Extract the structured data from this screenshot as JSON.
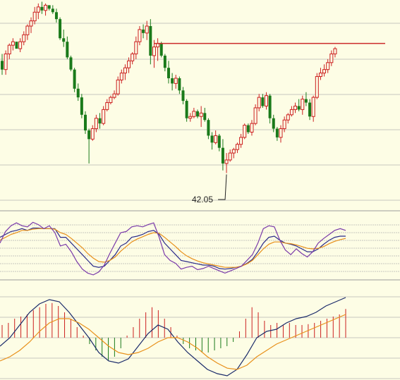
{
  "colors": {
    "background": "#fdfde5",
    "grid": "#c8c8c0",
    "separator": "#9a9a9a",
    "up": "#cc1f1f",
    "down": "#1a7a1a",
    "resistance": "#cc2a2a",
    "kdj_k": "#2a2a8a",
    "kdj_d": "#e8901a",
    "kdj_j": "#7a3aaa",
    "macd_dif": "#1a2a6a",
    "macd_dea": "#e8901a"
  },
  "chart_data": [
    {
      "type": "candlestick",
      "panel": "price",
      "ylim": [
        40,
        52
      ],
      "resistance_level": 49.5,
      "low_annotation": {
        "label": "42.05",
        "value": 42.05
      },
      "ohlc": [
        [
          48.5,
          48.9,
          47.7,
          48.0
        ],
        [
          48.0,
          49.1,
          47.7,
          48.9
        ],
        [
          48.9,
          49.5,
          48.6,
          49.4
        ],
        [
          49.4,
          49.8,
          49.1,
          49.6
        ],
        [
          49.6,
          49.6,
          49.2,
          49.2
        ],
        [
          49.2,
          49.8,
          49.0,
          49.6
        ],
        [
          49.6,
          50.2,
          49.4,
          50.0
        ],
        [
          50.0,
          50.6,
          49.7,
          50.5
        ],
        [
          50.5,
          51.0,
          50.1,
          50.8
        ],
        [
          50.8,
          51.6,
          50.6,
          51.3
        ],
        [
          51.3,
          51.8,
          50.9,
          51.6
        ],
        [
          51.6,
          51.9,
          51.2,
          51.4
        ],
        [
          51.4,
          51.8,
          51.1,
          51.7
        ],
        [
          51.7,
          51.7,
          51.4,
          51.5
        ],
        [
          51.5,
          51.7,
          51.2,
          51.3
        ],
        [
          51.3,
          51.5,
          50.7,
          50.9
        ],
        [
          50.9,
          51.0,
          49.7,
          49.8
        ],
        [
          49.8,
          50.3,
          49.3,
          49.6
        ],
        [
          49.6,
          49.9,
          48.6,
          48.7
        ],
        [
          48.7,
          48.8,
          47.9,
          48.0
        ],
        [
          48.0,
          48.1,
          46.7,
          46.9
        ],
        [
          46.9,
          47.2,
          46.2,
          46.4
        ],
        [
          46.4,
          46.6,
          45.2,
          45.4
        ],
        [
          45.4,
          45.6,
          44.3,
          44.5
        ],
        [
          44.5,
          44.6,
          42.6,
          44.0
        ],
        [
          44.0,
          44.8,
          43.9,
          44.6
        ],
        [
          44.6,
          45.4,
          44.4,
          45.2
        ],
        [
          45.2,
          45.5,
          44.6,
          44.9
        ],
        [
          44.9,
          45.9,
          44.8,
          45.7
        ],
        [
          45.7,
          46.3,
          45.6,
          46.1
        ],
        [
          46.1,
          46.5,
          46.0,
          46.4
        ],
        [
          46.4,
          46.8,
          46.3,
          46.6
        ],
        [
          46.6,
          47.6,
          46.5,
          47.4
        ],
        [
          47.4,
          48.0,
          47.2,
          47.8
        ],
        [
          47.8,
          48.3,
          47.4,
          48.1
        ],
        [
          48.1,
          48.7,
          47.8,
          48.5
        ],
        [
          48.5,
          49.0,
          48.3,
          48.9
        ],
        [
          48.9,
          49.9,
          48.6,
          49.6
        ],
        [
          49.6,
          50.5,
          49.4,
          50.3
        ],
        [
          50.3,
          50.6,
          49.8,
          50.1
        ],
        [
          50.1,
          50.8,
          49.7,
          50.5
        ],
        [
          50.5,
          50.9,
          48.3,
          48.8
        ],
        [
          48.8,
          49.7,
          48.1,
          49.3
        ],
        [
          49.3,
          49.8,
          48.5,
          49.5
        ],
        [
          49.5,
          49.6,
          48.7,
          48.8
        ],
        [
          48.8,
          48.9,
          47.9,
          48.1
        ],
        [
          48.1,
          48.5,
          47.2,
          47.5
        ],
        [
          47.5,
          47.8,
          46.8,
          47.2
        ],
        [
          47.2,
          47.7,
          46.9,
          47.5
        ],
        [
          47.5,
          47.6,
          46.6,
          46.8
        ],
        [
          46.8,
          47.0,
          46.0,
          46.2
        ],
        [
          46.2,
          46.3,
          45.0,
          45.2
        ],
        [
          45.2,
          45.5,
          45.0,
          45.3
        ],
        [
          45.3,
          45.8,
          45.2,
          45.6
        ],
        [
          45.6,
          45.7,
          45.2,
          45.3
        ],
        [
          45.3,
          45.9,
          44.7,
          45.5
        ],
        [
          45.5,
          45.8,
          45.0,
          45.1
        ],
        [
          45.1,
          45.2,
          44.0,
          44.2
        ],
        [
          44.2,
          44.4,
          43.4,
          43.8
        ],
        [
          43.8,
          44.5,
          43.7,
          44.2
        ],
        [
          44.2,
          44.3,
          43.3,
          43.5
        ],
        [
          43.5,
          44.0,
          42.2,
          42.6
        ],
        [
          42.6,
          43.2,
          42.05,
          42.8
        ],
        [
          42.8,
          43.4,
          42.7,
          43.2
        ],
        [
          43.2,
          43.5,
          42.9,
          43.4
        ],
        [
          43.4,
          43.8,
          43.2,
          43.7
        ],
        [
          43.7,
          44.3,
          43.5,
          44.1
        ],
        [
          44.1,
          44.9,
          44.0,
          44.8
        ],
        [
          44.8,
          44.9,
          44.3,
          44.4
        ],
        [
          44.4,
          45.1,
          44.2,
          44.9
        ],
        [
          44.9,
          46.0,
          44.8,
          45.8
        ],
        [
          45.8,
          46.6,
          45.6,
          46.4
        ],
        [
          46.4,
          46.6,
          45.8,
          45.9
        ],
        [
          45.9,
          46.7,
          45.7,
          46.5
        ],
        [
          46.5,
          46.6,
          44.9,
          45.2
        ],
        [
          45.2,
          45.4,
          44.4,
          44.6
        ],
        [
          44.6,
          44.7,
          43.9,
          44.1
        ],
        [
          44.1,
          44.8,
          43.8,
          44.6
        ],
        [
          44.6,
          45.3,
          44.4,
          45.1
        ],
        [
          45.1,
          45.5,
          44.9,
          45.4
        ],
        [
          45.4,
          45.9,
          45.3,
          45.7
        ],
        [
          45.7,
          46.1,
          45.5,
          45.9
        ],
        [
          45.9,
          46.3,
          45.6,
          45.7
        ],
        [
          45.7,
          46.5,
          45.4,
          46.3
        ],
        [
          46.3,
          46.7,
          45.9,
          46.1
        ],
        [
          46.1,
          46.3,
          45.1,
          45.3
        ],
        [
          45.3,
          46.5,
          45.0,
          46.4
        ],
        [
          46.4,
          47.8,
          46.3,
          47.6
        ],
        [
          47.6,
          48.1,
          47.4,
          47.8
        ],
        [
          47.8,
          48.3,
          47.6,
          48.0
        ],
        [
          48.0,
          48.6,
          47.8,
          48.4
        ],
        [
          48.4,
          49.1,
          48.2,
          48.9
        ],
        [
          48.9,
          49.3,
          48.7,
          49.2
        ]
      ]
    },
    {
      "type": "line",
      "panel": "kdj",
      "ylim": [
        0,
        100
      ],
      "series": [
        {
          "key": "k",
          "values": [
            70,
            75,
            80,
            82,
            85,
            82,
            86,
            86,
            85,
            85,
            85,
            70,
            70,
            60,
            50,
            40,
            30,
            20,
            18,
            20,
            30,
            40,
            55,
            60,
            70,
            72,
            75,
            80,
            82,
            75,
            60,
            50,
            40,
            30,
            28,
            26,
            24,
            22,
            22,
            20,
            16,
            15,
            16,
            18,
            20,
            25,
            32,
            45,
            60,
            70,
            72,
            65,
            60,
            58,
            55,
            50,
            45,
            45,
            50,
            58,
            65,
            70,
            72,
            72
          ]
        },
        {
          "key": "d",
          "values": [
            65,
            70,
            75,
            78,
            82,
            82,
            84,
            85,
            85,
            85,
            84,
            78,
            75,
            68,
            60,
            52,
            42,
            34,
            28,
            27,
            30,
            36,
            46,
            54,
            62,
            67,
            71,
            75,
            78,
            77,
            70,
            62,
            54,
            45,
            38,
            33,
            29,
            26,
            24,
            22,
            20,
            18,
            18,
            18,
            20,
            24,
            30,
            40,
            50,
            58,
            62,
            62,
            60,
            59,
            57,
            54,
            51,
            50,
            51,
            54,
            59,
            63,
            66,
            68
          ]
        },
        {
          "key": "j",
          "values": [
            60,
            80,
            90,
            95,
            90,
            88,
            96,
            92,
            85,
            90,
            78,
            55,
            58,
            45,
            28,
            15,
            8,
            5,
            10,
            22,
            42,
            60,
            78,
            80,
            88,
            90,
            88,
            92,
            95,
            70,
            40,
            30,
            25,
            15,
            18,
            20,
            14,
            16,
            20,
            16,
            12,
            8,
            12,
            16,
            20,
            30,
            40,
            60,
            85,
            90,
            88,
            65,
            48,
            40,
            50,
            42,
            36,
            45,
            60,
            68,
            75,
            82,
            85,
            82
          ]
        }
      ]
    },
    {
      "type": "bar",
      "panel": "macd",
      "ylim": [
        -1.0,
        1.0
      ],
      "histogram": [
        0.3,
        0.35,
        0.45,
        0.5,
        0.55,
        0.65,
        0.72,
        0.8,
        0.82,
        0.75,
        0.6,
        0.45,
        0.25,
        0.05,
        -0.15,
        -0.3,
        -0.45,
        -0.55,
        -0.45,
        -0.25,
        0.05,
        0.25,
        0.45,
        0.6,
        0.72,
        0.65,
        0.45,
        0.25,
        0.05,
        -0.15,
        -0.25,
        -0.3,
        -0.35,
        -0.35,
        -0.3,
        -0.25,
        -0.2,
        -0.1,
        0.15,
        0.45,
        0.72,
        0.6,
        0.4,
        0.3,
        0.35,
        0.3,
        0.35,
        0.3,
        0.3,
        0.32,
        0.35,
        0.4,
        0.45,
        0.5,
        0.55,
        0.68
      ],
      "series": [
        {
          "key": "dif",
          "values": [
            -0.2,
            0.0,
            0.3,
            0.6,
            0.8,
            0.9,
            0.85,
            0.6,
            0.3,
            0.0,
            -0.35,
            -0.55,
            -0.6,
            -0.5,
            -0.2,
            0.1,
            0.3,
            0.2,
            -0.1,
            -0.35,
            -0.55,
            -0.75,
            -0.85,
            -0.9,
            -0.75,
            -0.4,
            0.0,
            0.15,
            0.2,
            0.35,
            0.45,
            0.5,
            0.6,
            0.75,
            0.85,
            0.95
          ]
        },
        {
          "key": "dea",
          "values": [
            -0.55,
            -0.45,
            -0.3,
            -0.1,
            0.15,
            0.35,
            0.45,
            0.45,
            0.35,
            0.2,
            0.0,
            -0.2,
            -0.35,
            -0.4,
            -0.35,
            -0.25,
            -0.1,
            0.0,
            0.0,
            -0.1,
            -0.25,
            -0.45,
            -0.6,
            -0.72,
            -0.75,
            -0.65,
            -0.45,
            -0.3,
            -0.15,
            -0.05,
            0.05,
            0.15,
            0.25,
            0.35,
            0.45,
            0.55
          ]
        }
      ]
    }
  ]
}
